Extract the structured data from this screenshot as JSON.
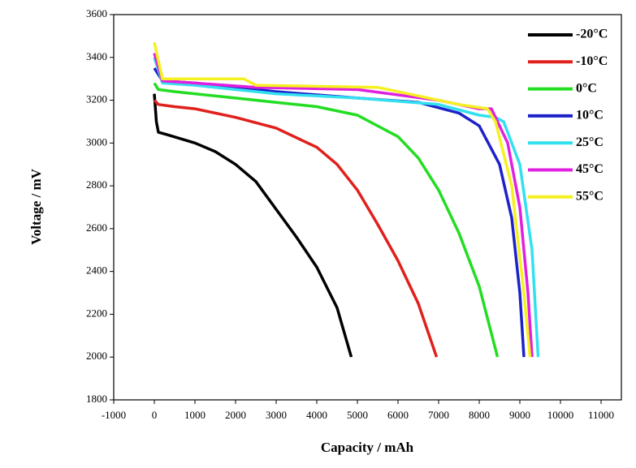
{
  "chart_data": {
    "type": "line",
    "xlabel": "Capacity / mAh",
    "ylabel": "Voltage / mV",
    "xlim": [
      -1000,
      11500
    ],
    "ylim": [
      1800,
      3600
    ],
    "xticks": [
      -1000,
      0,
      1000,
      2000,
      3000,
      4000,
      5000,
      6000,
      7000,
      8000,
      9000,
      10000,
      11000
    ],
    "yticks": [
      1800,
      2000,
      2200,
      2400,
      2600,
      2800,
      3000,
      3200,
      3400,
      3600
    ],
    "legend": "upper-right",
    "series": [
      {
        "name": "-20°C",
        "color": "#000000",
        "x": [
          0,
          50,
          100,
          300,
          1000,
          1500,
          2000,
          2500,
          3000,
          3500,
          4000,
          4500,
          4850
        ],
        "values": [
          3230,
          3100,
          3050,
          3040,
          3000,
          2960,
          2900,
          2820,
          2690,
          2560,
          2420,
          2230,
          2000
        ]
      },
      {
        "name": "-10°C",
        "color": "#e0201c",
        "x": [
          0,
          100,
          500,
          1000,
          2000,
          3000,
          4000,
          4500,
          5000,
          5500,
          6000,
          6500,
          6950
        ],
        "values": [
          3200,
          3180,
          3170,
          3160,
          3120,
          3070,
          2980,
          2900,
          2780,
          2620,
          2450,
          2250,
          2000
        ]
      },
      {
        "name": "0°C",
        "color": "#22dd22",
        "x": [
          0,
          100,
          500,
          2000,
          3000,
          4000,
          5000,
          6000,
          6500,
          7000,
          7500,
          8000,
          8450
        ],
        "values": [
          3280,
          3250,
          3240,
          3210,
          3190,
          3170,
          3130,
          3030,
          2930,
          2780,
          2580,
          2330,
          2000
        ]
      },
      {
        "name": "10°C",
        "color": "#1c22c8",
        "x": [
          0,
          200,
          1000,
          3000,
          5000,
          6500,
          7500,
          8000,
          8500,
          8800,
          9000,
          9100
        ],
        "values": [
          3350,
          3290,
          3280,
          3240,
          3210,
          3190,
          3140,
          3080,
          2900,
          2650,
          2300,
          2000
        ]
      },
      {
        "name": "25°C",
        "color": "#33e0f0",
        "x": [
          0,
          200,
          1000,
          3000,
          5000,
          7000,
          8000,
          8400,
          8600,
          9000,
          9300,
          9450
        ],
        "values": [
          3400,
          3280,
          3270,
          3230,
          3210,
          3180,
          3130,
          3120,
          3100,
          2900,
          2500,
          2000
        ]
      },
      {
        "name": "45°C",
        "color": "#e020e0",
        "x": [
          0,
          200,
          1000,
          2500,
          5000,
          7000,
          8000,
          8300,
          8700,
          9000,
          9200,
          9300
        ],
        "values": [
          3420,
          3290,
          3280,
          3260,
          3250,
          3200,
          3160,
          3160,
          3000,
          2700,
          2300,
          2000
        ]
      },
      {
        "name": "55°C",
        "color": "#f5f020",
        "x": [
          0,
          200,
          1000,
          2200,
          2500,
          5500,
          7500,
          8200,
          8400,
          8800,
          9100,
          9250
        ],
        "values": [
          3470,
          3300,
          3300,
          3300,
          3270,
          3260,
          3180,
          3160,
          3100,
          2800,
          2300,
          2000
        ]
      }
    ]
  }
}
